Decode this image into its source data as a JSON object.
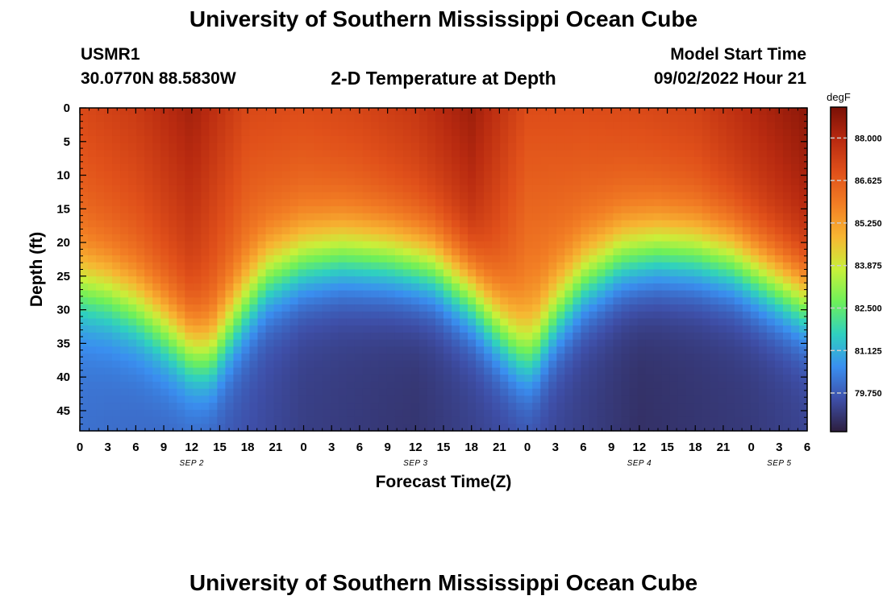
{
  "header": {
    "title": "University of Southern Mississippi Ocean Cube",
    "station_id": "USMR1",
    "coordinates": "30.0770N  88.5830W",
    "model_start_label": "Model Start Time",
    "model_start_value": "09/02/2022 Hour 21",
    "footer_title": "University of Southern Mississippi Ocean Cube"
  },
  "chart_data": {
    "type": "heatmap",
    "title": "2-D Temperature at Depth",
    "xlabel": "Forecast Time(Z)",
    "ylabel": "Depth (ft)",
    "x_ticks": [
      "0",
      "3",
      "6",
      "9",
      "12",
      "15",
      "18",
      "21",
      "0",
      "3",
      "6",
      "9",
      "12",
      "15",
      "18",
      "21",
      "0",
      "3",
      "6",
      "9",
      "12",
      "15",
      "18",
      "21",
      "0",
      "3",
      "6"
    ],
    "date_labels": [
      {
        "label": "SEP 2",
        "tick_index": 4
      },
      {
        "label": "SEP 3",
        "tick_index": 12
      },
      {
        "label": "SEP 4",
        "tick_index": 20
      },
      {
        "label": "SEP 5",
        "tick_index": 25
      }
    ],
    "xlim_hours": [
      0,
      78
    ],
    "y_ticks": [
      0,
      5,
      10,
      15,
      20,
      25,
      30,
      35,
      40,
      45
    ],
    "ylim": [
      0,
      48
    ],
    "colorbar": {
      "unit": "degF",
      "ticks": [
        "88.000",
        "86.625",
        "85.250",
        "83.875",
        "82.500",
        "81.125",
        "79.750"
      ],
      "range": [
        78.5,
        89.0
      ],
      "colors": [
        "#2d1e3e",
        "#3e4fa8",
        "#3a8ff0",
        "#2fd0c0",
        "#6ef05a",
        "#c8f03a",
        "#f7b632",
        "#f27e24",
        "#e0501a",
        "#b82a10",
        "#7a1006"
      ]
    },
    "surface_temp_by_hour": [
      [
        0,
        87.1
      ],
      [
        6,
        87.5
      ],
      [
        12,
        88.3
      ],
      [
        18,
        87.1
      ],
      [
        24,
        87.0
      ],
      [
        30,
        87.2
      ],
      [
        36,
        87.6
      ],
      [
        42,
        88.4
      ],
      [
        48,
        87.0
      ],
      [
        54,
        87.0
      ],
      [
        60,
        87.1
      ],
      [
        66,
        87.3
      ],
      [
        72,
        88.0
      ],
      [
        78,
        88.7
      ]
    ],
    "thermocline_depth_by_hour": [
      [
        0,
        27
      ],
      [
        3,
        28
      ],
      [
        6,
        30
      ],
      [
        9,
        33
      ],
      [
        12,
        36.5
      ],
      [
        14,
        37
      ],
      [
        17,
        31
      ],
      [
        20,
        25.5
      ],
      [
        24,
        23
      ],
      [
        28,
        22
      ],
      [
        33,
        22.5
      ],
      [
        38,
        24
      ],
      [
        42,
        28
      ],
      [
        45,
        33
      ],
      [
        47,
        36
      ],
      [
        48.5,
        36.8
      ],
      [
        51,
        31
      ],
      [
        54,
        26
      ],
      [
        58,
        22.5
      ],
      [
        62,
        21.5
      ],
      [
        66,
        21.8
      ],
      [
        70,
        23
      ],
      [
        74,
        26
      ],
      [
        78,
        29
      ]
    ],
    "bottom_temp_by_hour": [
      [
        0,
        80.1
      ],
      [
        12,
        79.9
      ],
      [
        24,
        79.2
      ],
      [
        36,
        79.0
      ],
      [
        48,
        79.5
      ],
      [
        60,
        78.9
      ],
      [
        72,
        79.1
      ],
      [
        78,
        79.3
      ]
    ]
  }
}
